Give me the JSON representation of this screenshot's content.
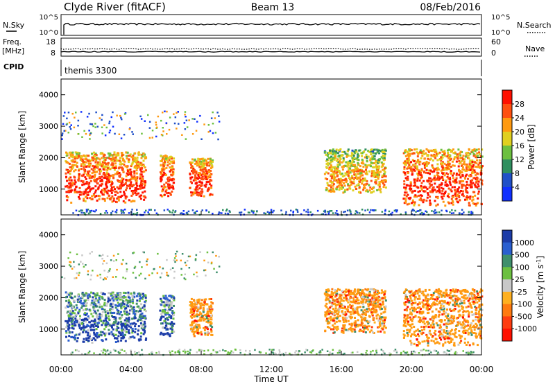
{
  "header": {
    "station": "Clyde River (fitACF)",
    "beam": "Beam 13",
    "date": "08/Feb/2016"
  },
  "sky_panel": {
    "left_label": "N.Sky",
    "left_ticks": [
      "10^5",
      "10^0"
    ],
    "right_ticks": [
      "10^5",
      "10^0"
    ],
    "right_label": "N.Search"
  },
  "freq_panel": {
    "label_line1": "Freq.",
    "label_line2": "[MHz]",
    "left_ticks": [
      "18",
      "8"
    ],
    "right_ticks": [
      "60",
      "0"
    ],
    "right_label": "Nave"
  },
  "cpid_panel": {
    "label": "CPID",
    "program": "themis 3300"
  },
  "x_axis": {
    "label": "Time UT",
    "ticks": [
      "00:00",
      "04:00",
      "08:00",
      "12:00",
      "16:00",
      "20:00",
      "00:00"
    ]
  },
  "chart_data": [
    {
      "type": "heatmap",
      "name_shown": "Power [dB]",
      "ylabel": "Slant Range [km]",
      "xlabel": "Time UT",
      "x_range_hours": [
        0,
        24
      ],
      "ylim": [
        180,
        4500
      ],
      "y_ticks": [
        "1000",
        "2000",
        "3000",
        "4000"
      ],
      "colorbar": {
        "label": "Power [dB]",
        "ticks": [
          "4",
          "8",
          "12",
          "16",
          "20",
          "24",
          "28"
        ],
        "range": [
          0,
          32
        ],
        "colors": [
          "#1030ff",
          "#2050c8",
          "#2f8f5f",
          "#6cc040",
          "#e0d020",
          "#ff9a10",
          "#ff5010",
          "#ff1000"
        ]
      },
      "regions": [
        {
          "t": [
            0.2,
            4.8
          ],
          "range_km": [
            600,
            2200
          ],
          "level": "high"
        },
        {
          "t": [
            5.6,
            6.4
          ],
          "range_km": [
            800,
            2100
          ],
          "level": "high"
        },
        {
          "t": [
            7.3,
            8.6
          ],
          "range_km": [
            800,
            2000
          ],
          "level": "high"
        },
        {
          "t": [
            15.0,
            18.5
          ],
          "range_km": [
            900,
            2300
          ],
          "level": "medium"
        },
        {
          "t": [
            19.5,
            24.0
          ],
          "range_km": [
            500,
            2300
          ],
          "level": "high"
        }
      ]
    },
    {
      "type": "heatmap",
      "name_shown": "Velocity [m s^-1]",
      "ylabel": "Slant Range [km]",
      "xlabel": "Time UT",
      "x_range_hours": [
        0,
        24
      ],
      "ylim": [
        180,
        4500
      ],
      "y_ticks": [
        "1000",
        "2000",
        "3000",
        "4000"
      ],
      "colorbar": {
        "label": "Velocity [m s-1]",
        "ticks": [
          "1000",
          "500",
          "100",
          "25",
          "-25",
          "-100",
          "-500",
          "-1000"
        ],
        "colors": [
          "#1c3ca8",
          "#2a5fd0",
          "#3f8f6c",
          "#6cc040",
          "#c8c8c8",
          "#ffb020",
          "#ff7a10",
          "#ff3c10",
          "#ff1000"
        ]
      },
      "regions": [
        {
          "t": [
            0.2,
            4.8
          ],
          "range_km": [
            600,
            2200
          ],
          "sign": "positive"
        },
        {
          "t": [
            5.6,
            6.4
          ],
          "range_km": [
            800,
            2100
          ],
          "sign": "positive"
        },
        {
          "t": [
            7.3,
            8.6
          ],
          "range_km": [
            800,
            2000
          ],
          "sign": "negative"
        },
        {
          "t": [
            15.0,
            18.5
          ],
          "range_km": [
            900,
            2300
          ],
          "sign": "negative"
        },
        {
          "t": [
            19.5,
            24.0
          ],
          "range_km": [
            500,
            2300
          ],
          "sign": "negative"
        }
      ]
    }
  ]
}
